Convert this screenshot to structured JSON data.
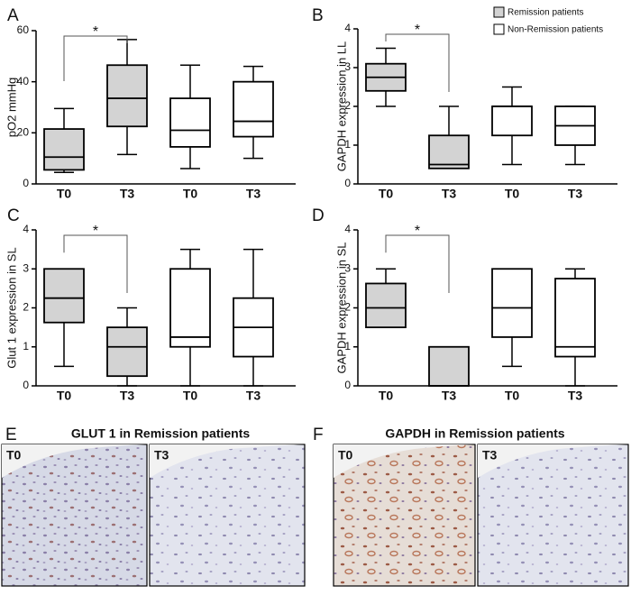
{
  "legend": [
    {
      "name": "Remission patients",
      "color": "#d3d3d3"
    },
    {
      "name": "Non-Remission patients",
      "color": "#ffffff"
    }
  ],
  "chart_data": [
    {
      "type": "box",
      "panel": "A",
      "ylabel": "pO2 mmHg",
      "categories": [
        "T0",
        "T3",
        "T0",
        "T3"
      ],
      "boxes": [
        {
          "min": 4.5,
          "q1": 5.5,
          "median": 10.5,
          "q3": 21.5,
          "max": 29.5
        },
        {
          "min": 11.5,
          "q1": 22.5,
          "median": 33.5,
          "q3": 46.5,
          "max": 56.5
        },
        {
          "min": 6,
          "q1": 14.5,
          "median": 21,
          "q3": 33.5,
          "max": 46.5
        },
        {
          "min": 10,
          "q1": 18.5,
          "median": 24.5,
          "q3": 40,
          "max": 46
        }
      ],
      "box_colors": [
        "#d3d3d3",
        "#d3d3d3",
        "#ffffff",
        "#ffffff"
      ],
      "ylim": [
        0,
        60
      ],
      "yticks": [
        0,
        20,
        40,
        60
      ],
      "annotation": "*"
    },
    {
      "type": "box",
      "panel": "B",
      "ylabel": "GAPDH expression in LL",
      "categories": [
        "T0",
        "T3",
        "T0",
        "T3"
      ],
      "boxes": [
        {
          "min": 2,
          "q1": 2.4,
          "median": 2.75,
          "q3": 3.1,
          "max": 3.5
        },
        {
          "min": 0.4,
          "q1": 0.4,
          "median": 0.5,
          "q3": 1.25,
          "max": 2
        },
        {
          "min": 0.5,
          "q1": 1.25,
          "median": 2,
          "q3": 2,
          "max": 2.5
        },
        {
          "min": 0.5,
          "q1": 1,
          "median": 1.5,
          "q3": 2,
          "max": 2
        }
      ],
      "box_colors": [
        "#d3d3d3",
        "#d3d3d3",
        "#ffffff",
        "#ffffff"
      ],
      "ylim": [
        0,
        4
      ],
      "yticks": [
        0,
        1,
        2,
        3,
        4
      ],
      "annotation": "*"
    },
    {
      "type": "box",
      "panel": "C",
      "ylabel": "Glut 1 expression in SL",
      "categories": [
        "T0",
        "T3",
        "T0",
        "T3"
      ],
      "boxes": [
        {
          "min": 0.5,
          "q1": 1.625,
          "median": 2.25,
          "q3": 3,
          "max": 3
        },
        {
          "min": 0,
          "q1": 0.25,
          "median": 1,
          "q3": 1.5,
          "max": 2
        },
        {
          "min": 0,
          "q1": 1,
          "median": 1.25,
          "q3": 3,
          "max": 3.5
        },
        {
          "min": 0,
          "q1": 0.75,
          "median": 1.5,
          "q3": 2.25,
          "max": 3.5
        }
      ],
      "box_colors": [
        "#d3d3d3",
        "#d3d3d3",
        "#ffffff",
        "#ffffff"
      ],
      "ylim": [
        0,
        4
      ],
      "yticks": [
        0,
        1,
        2,
        3,
        4
      ],
      "annotation": "*"
    },
    {
      "type": "box",
      "panel": "D",
      "ylabel": "GAPDH expression in SL",
      "categories": [
        "T0",
        "T3",
        "T0",
        "T3"
      ],
      "boxes": [
        {
          "min": 1.5,
          "q1": 1.5,
          "median": 2,
          "q3": 2.625,
          "max": 3
        },
        {
          "min": 0,
          "q1": 0,
          "median": 0,
          "q3": 1,
          "max": 1
        },
        {
          "min": 0.5,
          "q1": 1.25,
          "median": 2,
          "q3": 3,
          "max": 3
        },
        {
          "min": 0,
          "q1": 0.75,
          "median": 1,
          "q3": 2.75,
          "max": 3
        }
      ],
      "box_colors": [
        "#d3d3d3",
        "#d3d3d3",
        "#ffffff",
        "#ffffff"
      ],
      "ylim": [
        0,
        4
      ],
      "yticks": [
        0,
        1,
        2,
        3,
        4
      ],
      "annotation": "*"
    }
  ],
  "image_panels": [
    {
      "panel": "E",
      "title": "GLUT 1 in Remission patients",
      "images": [
        "T0",
        "T3"
      ]
    },
    {
      "panel": "F",
      "title": "GAPDH in Remission patients",
      "images": [
        "T0",
        "T3"
      ]
    }
  ]
}
